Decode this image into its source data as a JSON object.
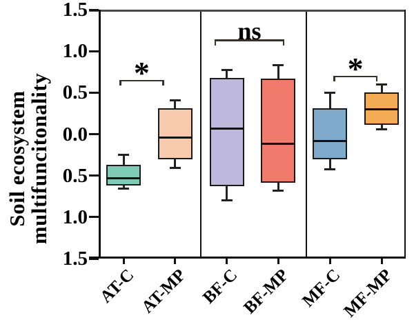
{
  "chart_data": {
    "type": "boxplot",
    "title": "",
    "ylabel_lines": [
      "Soil ecosystem",
      "multifuncitonality"
    ],
    "ylim": [
      -1.5,
      1.5
    ],
    "grid": false,
    "yticks": [
      {
        "value": 1.5,
        "label": "1.5"
      },
      {
        "value": 1.0,
        "label": "1.0"
      },
      {
        "value": 0.5,
        "label": "0.5"
      },
      {
        "value": 0.0,
        "label": "0.0"
      },
      {
        "value": -0.5,
        "label": "0.5"
      },
      {
        "value": -1.0,
        "label": "1.0"
      },
      {
        "value": -1.5,
        "label": "1.5"
      }
    ],
    "categories": [
      "AT-C",
      "AT-MP",
      "BF-C",
      "BF-MP",
      "MF-C",
      "MF-MP"
    ],
    "panels": [
      [
        "AT-C",
        "AT-MP"
      ],
      [
        "BF-C",
        "BF-MP"
      ],
      [
        "MF-C",
        "MF-MP"
      ]
    ],
    "boxes": [
      {
        "category": "AT-C",
        "color": "#7FCBB6",
        "whisker_low": -0.66,
        "q1": -0.62,
        "median": -0.53,
        "q3": -0.37,
        "whisker_high": -0.25
      },
      {
        "category": "AT-MP",
        "color": "#F8CBAE",
        "whisker_low": -0.41,
        "q1": -0.3,
        "median": -0.04,
        "q3": 0.31,
        "whisker_high": 0.41
      },
      {
        "category": "BF-C",
        "color": "#BDB8DC",
        "whisker_low": -0.8,
        "q1": -0.63,
        "median": 0.07,
        "q3": 0.68,
        "whisker_high": 0.77
      },
      {
        "category": "BF-MP",
        "color": "#F07B6D",
        "whisker_low": -0.68,
        "q1": -0.59,
        "median": -0.12,
        "q3": 0.67,
        "whisker_high": 0.83
      },
      {
        "category": "MF-C",
        "color": "#7FAACB",
        "whisker_low": -0.42,
        "q1": -0.3,
        "median": -0.08,
        "q3": 0.31,
        "whisker_high": 0.5
      },
      {
        "category": "MF-MP",
        "color": "#F3AB55",
        "whisker_low": 0.06,
        "q1": 0.11,
        "median": 0.3,
        "q3": 0.5,
        "whisker_high": 0.6
      }
    ],
    "annotations": [
      {
        "label": "*",
        "from": 0,
        "to": 1,
        "y": 0.64,
        "x1_off": -6,
        "x2_off": -16
      },
      {
        "label": "ns",
        "from": 2,
        "to": 3,
        "y": 1.13,
        "x1_off": -18,
        "x2_off": 9
      },
      {
        "label": "*",
        "from": 4,
        "to": 5,
        "y": 0.69,
        "x1_off": 5,
        "x2_off": -6
      }
    ],
    "colors": {
      "box_border": "#1a1a1a",
      "median": "#111111",
      "whisker": "#222222",
      "bracket": "#38302a",
      "frame_top": "#4a4a4a",
      "frame": "#111111"
    }
  }
}
